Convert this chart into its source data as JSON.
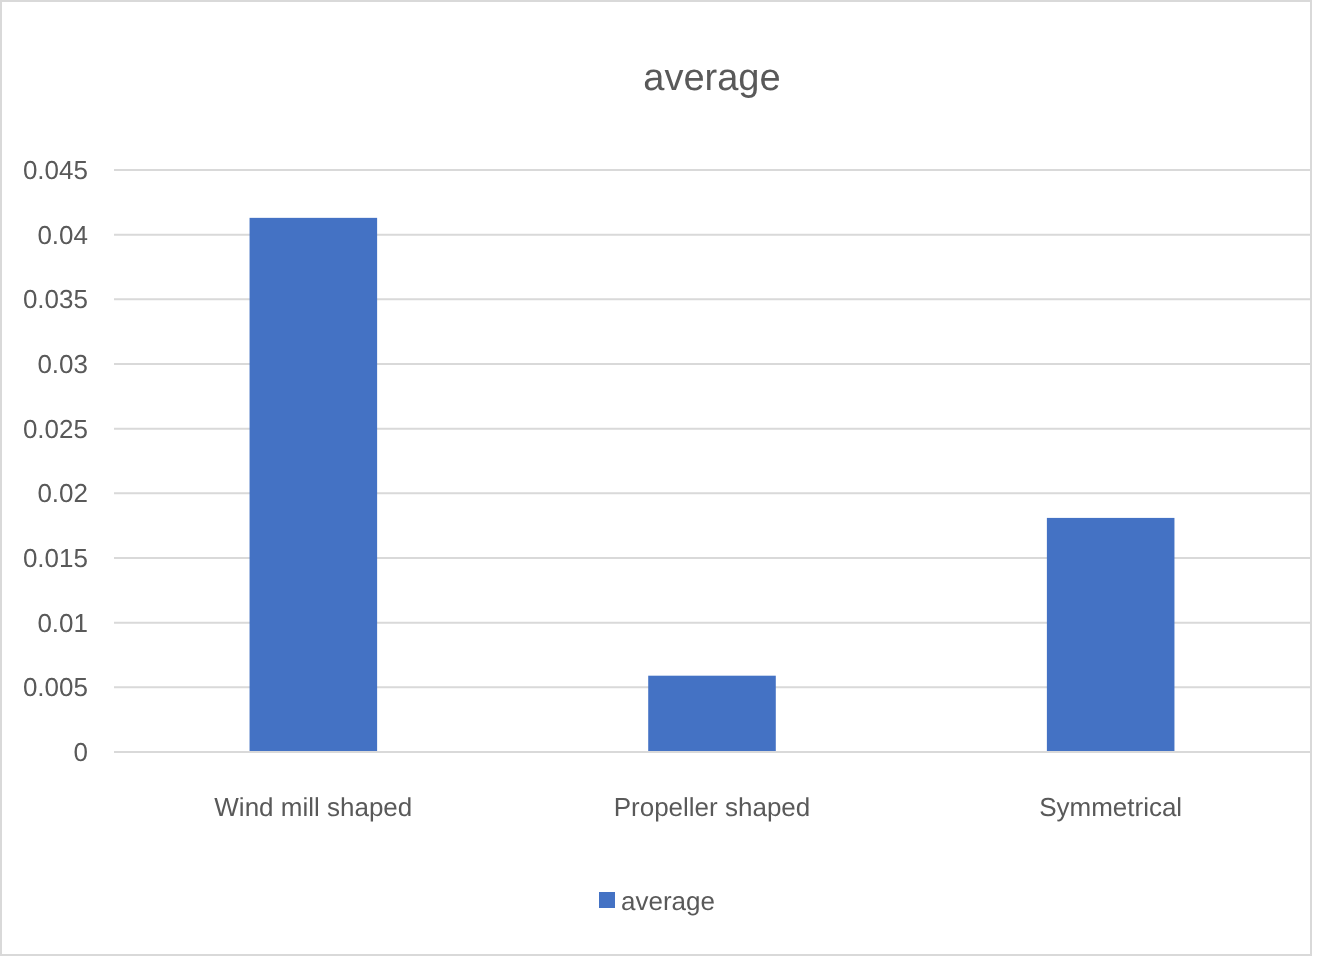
{
  "chart_data": {
    "type": "bar",
    "title": "average",
    "categories": [
      "Wind mill shaped",
      "Propeller shaped",
      "Symmetrical"
    ],
    "series": [
      {
        "name": "average",
        "color": "#4472c4",
        "values": [
          0.0413,
          0.0059,
          0.0181
        ]
      }
    ],
    "ylim": [
      0,
      0.045
    ],
    "yticks": [
      0,
      0.005,
      0.01,
      0.015,
      0.02,
      0.025,
      0.03,
      0.035,
      0.04,
      0.045
    ],
    "grid": "y",
    "legend": "bottom"
  }
}
